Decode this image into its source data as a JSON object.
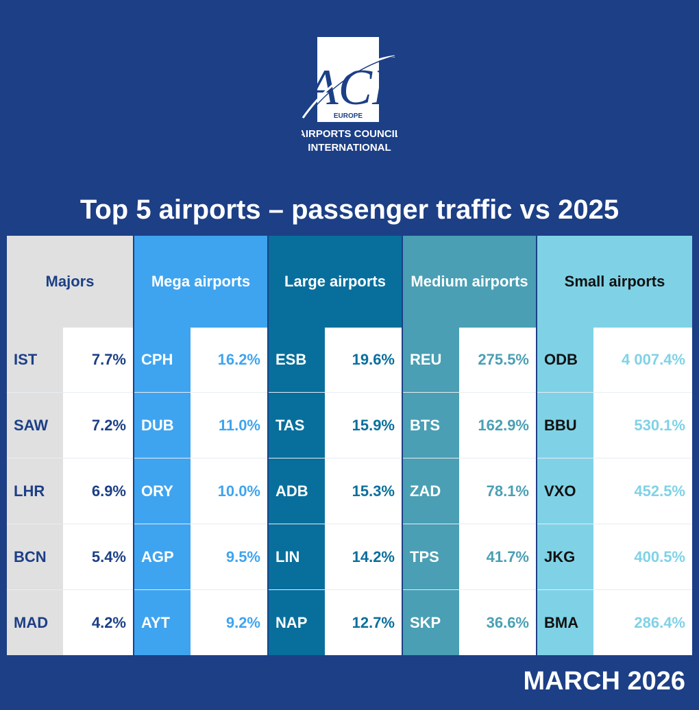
{
  "logo": {
    "mark": "ACI",
    "sub": "EUROPE",
    "line1": "AIRPORTS COUNCIL",
    "line2": "INTERNATIONAL"
  },
  "title": "Top 5 airports – passenger traffic vs 2025",
  "date": "MARCH 2026",
  "colors": {
    "background": "#1c3f86",
    "majors_header": "#e0e0e0",
    "mega": "#3fa4ef",
    "large": "#086f9c",
    "medium": "#4a9fb4",
    "small": "#7fd2e6"
  },
  "columns": [
    {
      "key": "majors",
      "header": "Majors",
      "rows": [
        {
          "code": "IST",
          "value": "7.7%"
        },
        {
          "code": "SAW",
          "value": "7.2%"
        },
        {
          "code": "LHR",
          "value": "6.9%"
        },
        {
          "code": "BCN",
          "value": "5.4%"
        },
        {
          "code": "MAD",
          "value": "4.2%"
        }
      ]
    },
    {
      "key": "mega",
      "header": "Mega airports",
      "rows": [
        {
          "code": "CPH",
          "value": "16.2%"
        },
        {
          "code": "DUB",
          "value": "11.0%"
        },
        {
          "code": "ORY",
          "value": "10.0%"
        },
        {
          "code": "AGP",
          "value": "9.5%"
        },
        {
          "code": "AYT",
          "value": "9.2%"
        }
      ]
    },
    {
      "key": "large",
      "header": "Large airports",
      "rows": [
        {
          "code": "ESB",
          "value": "19.6%"
        },
        {
          "code": "TAS",
          "value": "15.9%"
        },
        {
          "code": "ADB",
          "value": "15.3%"
        },
        {
          "code": "LIN",
          "value": "14.2%"
        },
        {
          "code": "NAP",
          "value": "12.7%"
        }
      ]
    },
    {
      "key": "medium",
      "header": "Medium airports",
      "rows": [
        {
          "code": "REU",
          "value": "275.5%"
        },
        {
          "code": "BTS",
          "value": "162.9%"
        },
        {
          "code": "ZAD",
          "value": "78.1%"
        },
        {
          "code": "TPS",
          "value": "41.7%"
        },
        {
          "code": "SKP",
          "value": "36.6%"
        }
      ]
    },
    {
      "key": "small",
      "header": "Small airports",
      "rows": [
        {
          "code": "ODB",
          "value": "4 007.4%"
        },
        {
          "code": "BBU",
          "value": "530.1%"
        },
        {
          "code": "VXO",
          "value": "452.5%"
        },
        {
          "code": "JKG",
          "value": "400.5%"
        },
        {
          "code": "BMA",
          "value": "286.4%"
        }
      ]
    }
  ]
}
